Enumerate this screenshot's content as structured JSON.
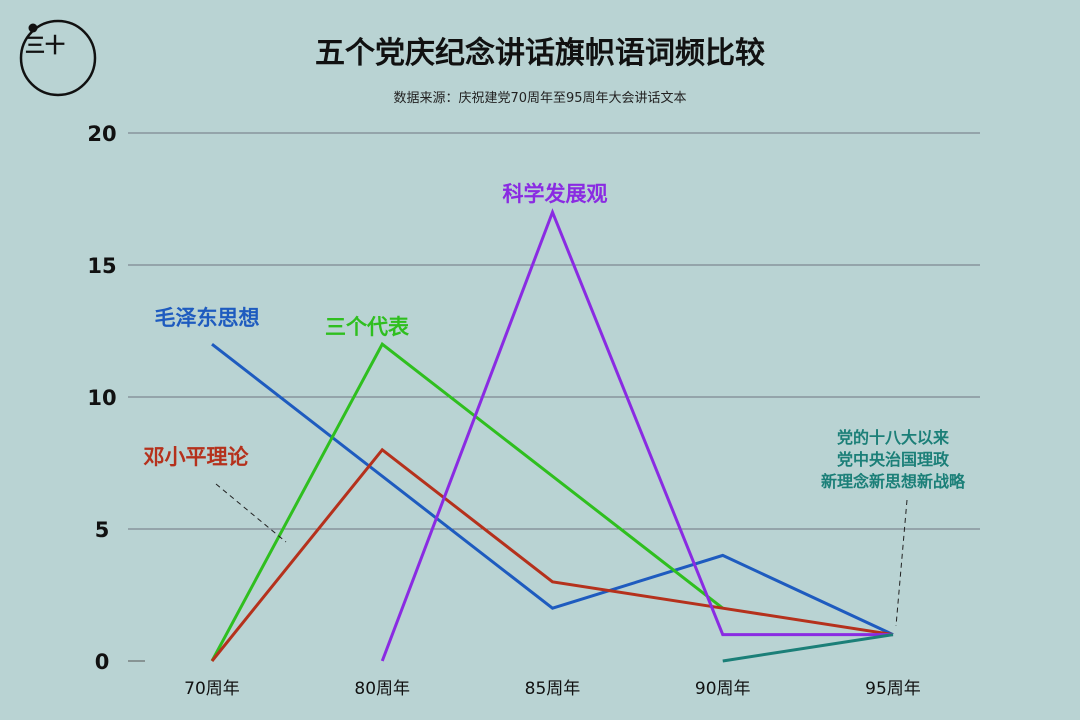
{
  "title": "五个党庆纪念讲话旗帜语词频比较",
  "subtitle": "数据来源：庆祝建党70周年至95周年大会讲话文本",
  "logo_text": "三十",
  "chart_data": {
    "type": "line",
    "title": "五个党庆纪念讲话旗帜语词频比较",
    "subtitle": "数据来源：庆祝建党70周年至95周年大会讲话文本",
    "categories": [
      "70周年",
      "80周年",
      "85周年",
      "90周年",
      "95周年"
    ],
    "ylim": [
      0,
      20
    ],
    "yticks": [
      0,
      5,
      10,
      15,
      20
    ],
    "grid": true,
    "series": [
      {
        "name": "毛泽东思想",
        "color": "#1e5bbf",
        "values": [
          12,
          7,
          2,
          4,
          1
        ]
      },
      {
        "name": "三个代表",
        "color": "#2fbf1f",
        "values": [
          0,
          12,
          7,
          2,
          null
        ]
      },
      {
        "name": "邓小平理论",
        "color": "#b5311c",
        "values": [
          0,
          8,
          3,
          2,
          1
        ]
      },
      {
        "name": "科学发展观",
        "color": "#8a2be2",
        "values": [
          null,
          0,
          17,
          1,
          1
        ]
      },
      {
        "name": "党的十八大以来党中央治国理政新理念新思想新战略",
        "color": "#1b7f78",
        "values": [
          null,
          null,
          null,
          0,
          1
        ]
      }
    ],
    "labels": [
      {
        "series": 0,
        "lines": [
          "毛泽东思想"
        ]
      },
      {
        "series": 1,
        "lines": [
          "三个代表"
        ]
      },
      {
        "series": 2,
        "lines": [
          "邓小平理论"
        ]
      },
      {
        "series": 3,
        "lines": [
          "科学发展观"
        ]
      },
      {
        "series": 4,
        "lines": [
          "党的十八大以来",
          "党中央治国理政",
          "新理念新思想新战略"
        ]
      }
    ]
  }
}
